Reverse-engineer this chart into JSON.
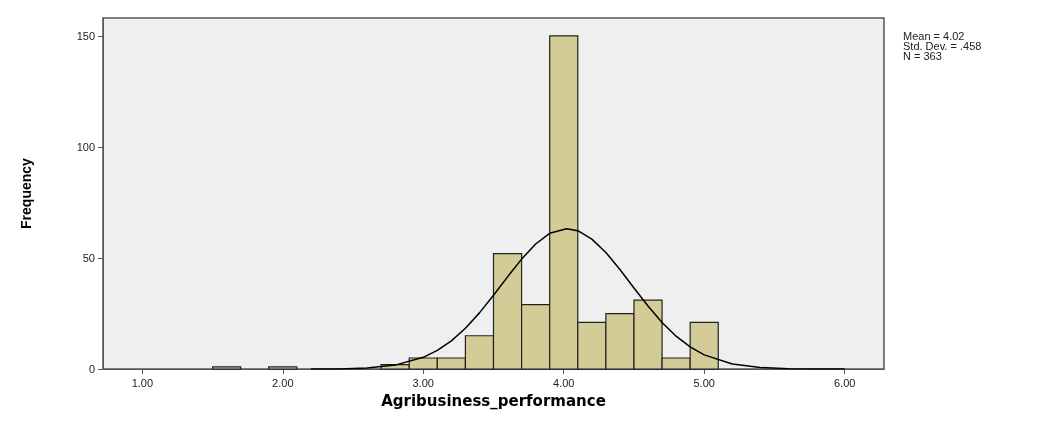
{
  "chart_data": {
    "type": "histogram",
    "xlabel": "Agribusiness_performance",
    "ylabel": "Frequency",
    "annotations": [
      "Mean = 4.02",
      "Std. Dev. = .458",
      "N = 363"
    ],
    "bins": [
      1.5,
      1.7,
      1.9,
      2.1,
      2.3,
      2.5,
      2.7,
      2.9,
      3.1,
      3.3,
      3.5,
      3.7,
      3.9,
      4.1,
      4.3,
      4.5,
      4.7,
      4.9,
      5.1
    ],
    "series": [
      {
        "color": "#d3cc96",
        "values": [
          1,
          0,
          1,
          0,
          0,
          0,
          2,
          5,
          5,
          15,
          52,
          29,
          150,
          21,
          25,
          31,
          5,
          21
        ]
      },
      {
        "type": "line",
        "color": "#000000",
        "x": [
          2.2,
          2.4,
          2.6,
          2.8,
          3.0,
          3.1,
          3.2,
          3.3,
          3.4,
          3.5,
          3.6,
          3.7,
          3.8,
          3.9,
          4.02,
          4.1,
          4.2,
          4.3,
          4.4,
          4.5,
          4.6,
          4.7,
          4.8,
          4.9,
          5.0,
          5.2,
          5.4,
          5.6,
          5.8,
          6.0
        ],
        "values": [
          0,
          0.1,
          0.5,
          1.8,
          5.3,
          8.4,
          12.7,
          18.4,
          25.3,
          33.2,
          41.5,
          49.5,
          56.3,
          61.1,
          63.2,
          62.3,
          58.5,
          52.5,
          44.8,
          36.5,
          28.4,
          21.0,
          14.8,
          10.0,
          6.4,
          2.3,
          0.7,
          0.2,
          0,
          0
        ]
      }
    ],
    "xlim": [
      0.72,
      6.28
    ],
    "xticks": [
      {
        "value": 1,
        "label": "1.00"
      },
      {
        "value": 2,
        "label": "2.00"
      },
      {
        "value": 3,
        "label": "3.00"
      },
      {
        "value": 4,
        "label": "4.00"
      },
      {
        "value": 5,
        "label": "5.00"
      },
      {
        "value": 6,
        "label": "6.00"
      }
    ],
    "ylim": [
      0,
      158
    ],
    "yticks": [
      0,
      50,
      100,
      150
    ]
  }
}
